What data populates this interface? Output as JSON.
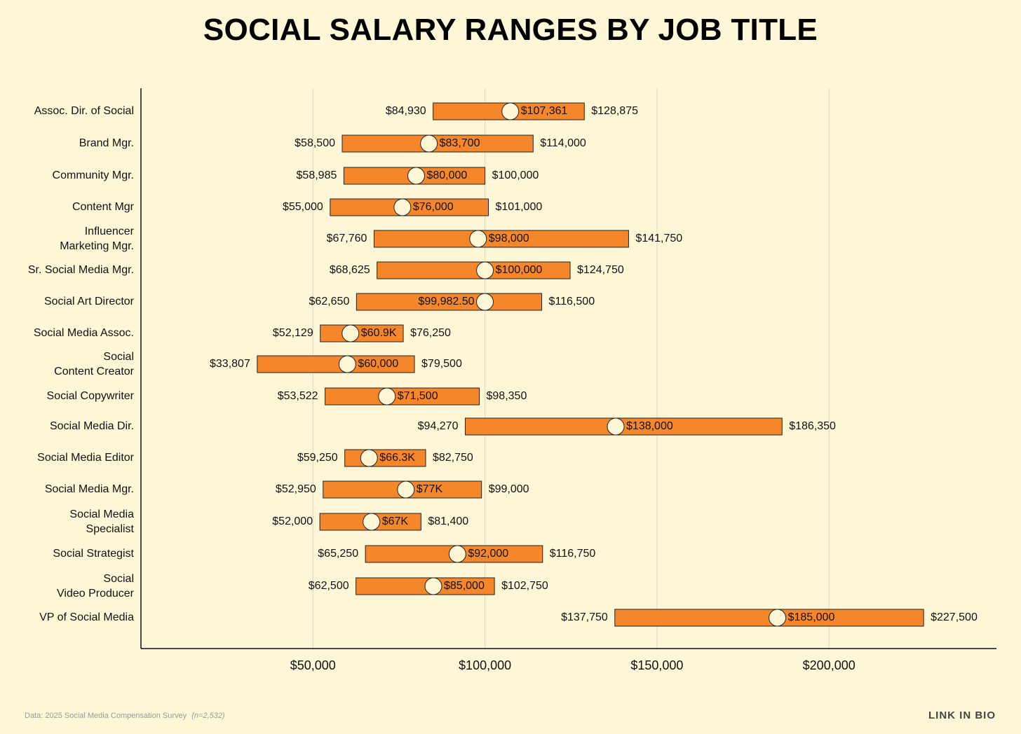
{
  "chart_data": {
    "type": "range-bar",
    "title": "SOCIAL SALARY RANGES BY JOB TITLE",
    "xlabel": "",
    "ylabel": "",
    "xlim": [
      0,
      247000
    ],
    "x_ticks": [
      50000,
      100000,
      150000,
      200000
    ],
    "x_tick_labels": [
      "$50,000",
      "$100,000",
      "$150,000",
      "$200,000"
    ],
    "grid": "vertical",
    "colors": {
      "background": "#FEF7D7",
      "bar": "#F5872A",
      "marker": "#FFF6D6",
      "grid": "#d9d6c5"
    },
    "rows": [
      {
        "label": [
          "Assoc. Dir. of Social"
        ],
        "min": 84930,
        "median": 107361,
        "max": 128875,
        "min_label": "$84,930",
        "median_label": "$107,361",
        "max_label": "$128,875",
        "median_label_side": "right"
      },
      {
        "label": [
          "Brand Mgr."
        ],
        "min": 58500,
        "median": 83700,
        "max": 114000,
        "min_label": "$58,500",
        "median_label": "$83,700",
        "max_label": "$114,000",
        "median_label_side": "right"
      },
      {
        "label": [
          "Community Mgr."
        ],
        "min": 58985,
        "median": 80000,
        "max": 100000,
        "min_label": "$58,985",
        "median_label": "$80,000",
        "max_label": "$100,000",
        "median_label_side": "right"
      },
      {
        "label": [
          "Content Mgr"
        ],
        "min": 55000,
        "median": 76000,
        "max": 101000,
        "min_label": "$55,000",
        "median_label": "$76,000",
        "max_label": "$101,000",
        "median_label_side": "right"
      },
      {
        "label": [
          "Influencer",
          "Marketing Mgr."
        ],
        "min": 67760,
        "median": 98000,
        "max": 141750,
        "min_label": "$67,760",
        "median_label": "$98,000",
        "max_label": "$141,750",
        "median_label_side": "right"
      },
      {
        "label": [
          "Sr. Social Media Mgr."
        ],
        "min": 68625,
        "median": 100000,
        "max": 124750,
        "min_label": "$68,625",
        "median_label": "$100,000",
        "max_label": "$124,750",
        "median_label_side": "right"
      },
      {
        "label": [
          "Social Art Director"
        ],
        "min": 62650,
        "median": 99982.5,
        "max": 116500,
        "min_label": "$62,650",
        "median_label": "$99,982.50",
        "max_label": "$116,500",
        "median_label_side": "left"
      },
      {
        "label": [
          "Social Media Assoc."
        ],
        "min": 52129,
        "median": 60900,
        "max": 76250,
        "min_label": "$52,129",
        "median_label": "$60.9K",
        "max_label": "$76,250",
        "median_label_side": "right"
      },
      {
        "label": [
          "Social",
          "Content Creator"
        ],
        "min": 33807,
        "median": 60000,
        "max": 79500,
        "min_label": "$33,807",
        "median_label": "$60,000",
        "max_label": "$79,500",
        "median_label_side": "right"
      },
      {
        "label": [
          "Social Copywriter"
        ],
        "min": 53522,
        "median": 71500,
        "max": 98350,
        "min_label": "$53,522",
        "median_label": "$71,500",
        "max_label": "$98,350",
        "median_label_side": "right"
      },
      {
        "label": [
          "Social Media Dir."
        ],
        "min": 94270,
        "median": 138000,
        "max": 186350,
        "min_label": "$94,270",
        "median_label": "$138,000",
        "max_label": "$186,350",
        "median_label_side": "right"
      },
      {
        "label": [
          "Social Media Editor"
        ],
        "min": 59250,
        "median": 66300,
        "max": 82750,
        "min_label": "$59,250",
        "median_label": "$66.3K",
        "max_label": "$82,750",
        "median_label_side": "right"
      },
      {
        "label": [
          "Social Media Mgr."
        ],
        "min": 52950,
        "median": 77000,
        "max": 99000,
        "min_label": "$52,950",
        "median_label": "$77K",
        "max_label": "$99,000",
        "median_label_side": "right"
      },
      {
        "label": [
          "Social Media",
          "Specialist"
        ],
        "min": 52000,
        "median": 67000,
        "max": 81400,
        "min_label": "$52,000",
        "median_label": "$67K",
        "max_label": "$81,400",
        "median_label_side": "right"
      },
      {
        "label": [
          "Social Strategist"
        ],
        "min": 65250,
        "median": 92000,
        "max": 116750,
        "min_label": "$65,250",
        "median_label": "$92,000",
        "max_label": "$116,750",
        "median_label_side": "right"
      },
      {
        "label": [
          "Social",
          "Video Producer"
        ],
        "min": 62500,
        "median": 85000,
        "max": 102750,
        "min_label": "$62,500",
        "median_label": "$85,000",
        "max_label": "$102,750",
        "median_label_side": "right"
      },
      {
        "label": [
          "VP of Social Media"
        ],
        "min": 137750,
        "median": 185000,
        "max": 227500,
        "min_label": "$137,750",
        "median_label": "$185,000",
        "max_label": "$227,500",
        "median_label_side": "right"
      }
    ]
  },
  "footer": {
    "source": "Data: 2025 Social Media Compensation Survey",
    "sample_note": "(n=2,532)",
    "brand": "LINK IN BIO"
  }
}
